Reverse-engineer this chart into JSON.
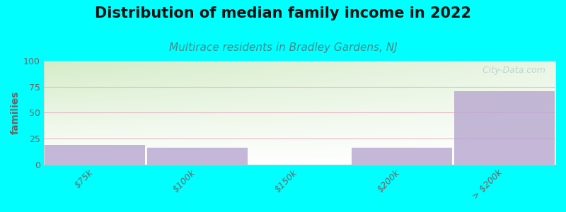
{
  "title": "Distribution of median family income in 2022",
  "subtitle": "Multirace residents in Bradley Gardens, NJ",
  "categories": [
    "$75k",
    "$100k",
    "$150k",
    "$200k",
    "> $200k"
  ],
  "values": [
    19,
    16,
    0,
    16,
    71
  ],
  "bar_color": "#b8a8d0",
  "background_color": "#00ffff",
  "plot_bg_color_top_left": "#d4ecc8",
  "plot_bg_color_top_right": "#f0f8ee",
  "plot_bg_color_bottom": "#ffffff",
  "ylabel": "families",
  "ylim": [
    0,
    100
  ],
  "yticks": [
    0,
    25,
    50,
    75,
    100
  ],
  "grid_color": "#e8b8c8",
  "title_fontsize": 15,
  "subtitle_fontsize": 11,
  "subtitle_color": "#448888",
  "tick_color": "#666666",
  "watermark": "  City-Data.com",
  "title_fontweight": "bold",
  "bar_alpha": 0.82
}
